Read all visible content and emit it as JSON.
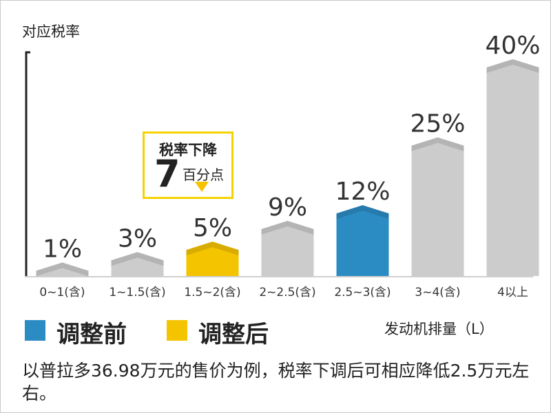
{
  "chart_data": {
    "type": "bar",
    "ylabel": "对应税率",
    "xlabel": "发动机排量（L）",
    "categories": [
      "0~1(含)",
      "1~1.5(含)",
      "1.5~2(含)",
      "2~2.5(含)",
      "2.5~3(含)",
      "3~4(含)",
      "4以上"
    ],
    "values": [
      1,
      3,
      5,
      9,
      12,
      25,
      40
    ],
    "value_labels": [
      "1%",
      "3%",
      "5%",
      "9%",
      "12%",
      "25%",
      "40%"
    ],
    "bar_colors": [
      "#cccccc",
      "#cccccc",
      "#f5c400",
      "#cccccc",
      "#2b8cc4",
      "#cccccc",
      "#cccccc"
    ],
    "ylim": [
      0,
      40
    ],
    "legend": [
      {
        "label": "调整前",
        "color": "#2b8cc4"
      },
      {
        "label": "调整后",
        "color": "#f5c400"
      }
    ],
    "legend_placement": "bottom-left",
    "grid": false
  },
  "callout": {
    "title": "税率下降",
    "number": "7",
    "unit": "百分点",
    "border_color": "#f5d200"
  },
  "note": "以普拉多36.98万元的售价为例，税率下调后可相应降低2.5万元左右。"
}
